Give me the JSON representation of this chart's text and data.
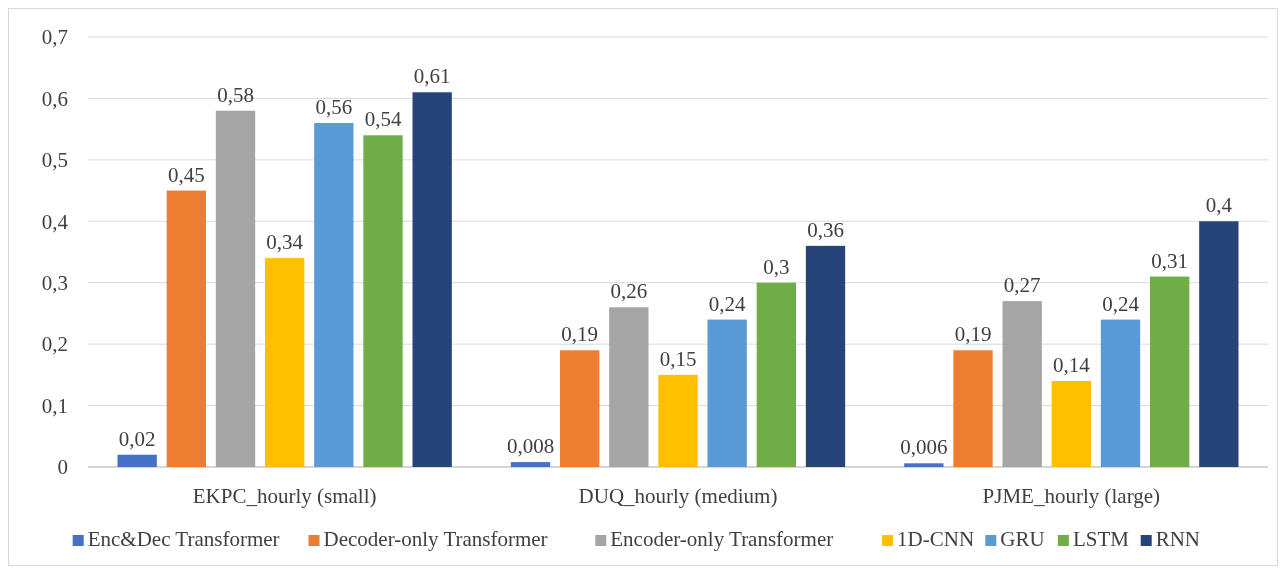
{
  "chart_data": {
    "type": "bar",
    "categories": [
      "EKPC_hourly (small)",
      "DUQ_hourly (medium)",
      "PJME_hourly (large)"
    ],
    "series": [
      {
        "name": "Enc&Dec Transformer",
        "color": "#4472c4",
        "values": [
          0.02,
          0.008,
          0.006
        ],
        "value_labels": [
          "0,02",
          "0,008",
          "0,006"
        ]
      },
      {
        "name": "Decoder-only Transformer",
        "color": "#ed7d31",
        "values": [
          0.45,
          0.19,
          0.19
        ],
        "value_labels": [
          "0,45",
          "0,19",
          "0,19"
        ]
      },
      {
        "name": "Encoder-only Transformer",
        "color": "#a5a5a5",
        "values": [
          0.58,
          0.26,
          0.27
        ],
        "value_labels": [
          "0,58",
          "0,26",
          "0,27"
        ]
      },
      {
        "name": "1D-CNN",
        "color": "#ffc000",
        "values": [
          0.34,
          0.15,
          0.14
        ],
        "value_labels": [
          "0,34",
          "0,15",
          "0,14"
        ]
      },
      {
        "name": "GRU",
        "color": "#5b9bd5",
        "values": [
          0.56,
          0.24,
          0.24
        ],
        "value_labels": [
          "0,56",
          "0,24",
          "0,24"
        ]
      },
      {
        "name": "LSTM",
        "color": "#70ad47",
        "values": [
          0.54,
          0.3,
          0.31
        ],
        "value_labels": [
          "0,54",
          "0,3",
          "0,31"
        ]
      },
      {
        "name": "RNN",
        "color": "#264478",
        "values": [
          0.61,
          0.36,
          0.4
        ],
        "value_labels": [
          "0,61",
          "0,36",
          "0,4"
        ]
      }
    ],
    "ylim": [
      0,
      0.7
    ],
    "yticks": [
      0,
      {
        "value": 0.1,
        "label": "0,1"
      },
      {
        "value": 0.2,
        "label": "0,2"
      },
      {
        "value": 0.3,
        "label": "0,3"
      },
      {
        "value": 0.4,
        "label": "0,4"
      },
      {
        "value": 0.5,
        "label": "0,5"
      },
      {
        "value": 0.6,
        "label": "0,6"
      },
      {
        "value": 0.7,
        "label": "0,7"
      }
    ],
    "grid": "y",
    "legend": "bottom"
  }
}
